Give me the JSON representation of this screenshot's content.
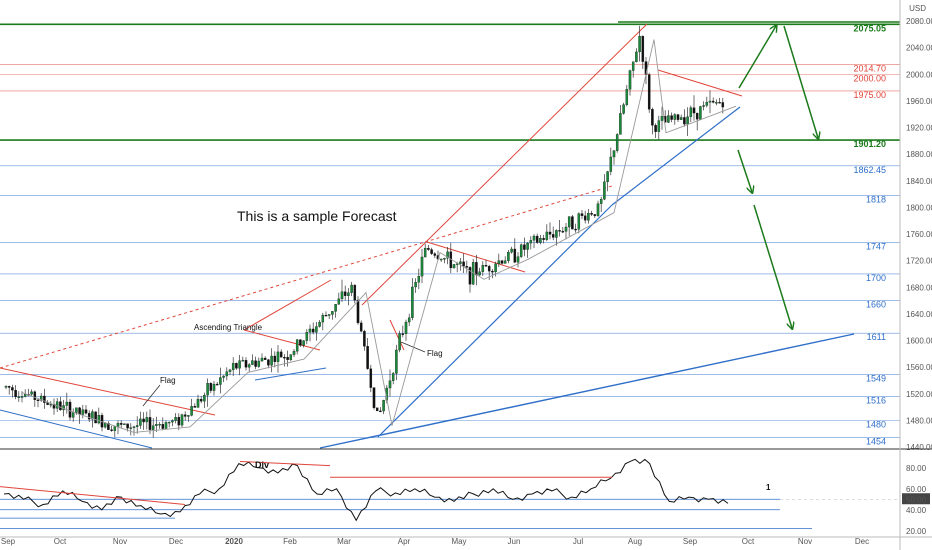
{
  "chart_data": [
    {
      "type": "candlestick",
      "title": "This is a sample Forecast",
      "currency_label": "USD",
      "ylim": [
        1440,
        2090
      ],
      "x_ticks": [
        "Sep",
        "Oct",
        "Nov",
        "Dec",
        "2020",
        "Feb",
        "Mar",
        "Apr",
        "May",
        "Jun",
        "Jul",
        "Aug",
        "Sep",
        "Oct",
        "Nov",
        "Dec"
      ],
      "y_ticks": [
        2080,
        2040,
        2000,
        1960,
        1920,
        1880,
        1840,
        1800,
        1760,
        1720,
        1680,
        1640,
        1600,
        1560,
        1520,
        1480,
        1440
      ],
      "levels": [
        {
          "value": 2075.05,
          "label": "2075.05",
          "color": "#1b7a1b",
          "weight": "bold"
        },
        {
          "value": 2014.7,
          "label": "2014.70",
          "color": "#e0453a",
          "weight": "normal"
        },
        {
          "value": 2000.0,
          "label": "2000.00",
          "color": "#e0453a",
          "weight": "normal"
        },
        {
          "value": 1975.0,
          "label": "1975.00",
          "color": "#e0453a",
          "weight": "normal"
        },
        {
          "value": 1901.2,
          "label": "1901.20",
          "color": "#1b7a1b",
          "weight": "bold"
        },
        {
          "value": 1862.45,
          "label": "1862.45",
          "color": "#2f6fc9",
          "weight": "normal"
        },
        {
          "value": 1818,
          "label": "1818",
          "color": "#2f6fc9",
          "weight": "normal"
        },
        {
          "value": 1747,
          "label": "1747",
          "color": "#2f6fc9",
          "weight": "normal"
        },
        {
          "value": 1700,
          "label": "1700",
          "color": "#2f6fc9",
          "weight": "normal"
        },
        {
          "value": 1660,
          "label": "1660",
          "color": "#2f6fc9",
          "weight": "normal"
        },
        {
          "value": 1611,
          "label": "1611",
          "color": "#2f6fc9",
          "weight": "normal"
        },
        {
          "value": 1549,
          "label": "1549",
          "color": "#2f6fc9",
          "weight": "normal"
        },
        {
          "value": 1516,
          "label": "1516",
          "color": "#2f6fc9",
          "weight": "normal"
        },
        {
          "value": 1480,
          "label": "1480",
          "color": "#2f6fc9",
          "weight": "normal"
        },
        {
          "value": 1454,
          "label": "1454",
          "color": "#2f6fc9",
          "weight": "normal"
        }
      ],
      "price_path": [
        [
          "Sep",
          1530
        ],
        [
          "Oct",
          1500
        ],
        [
          "Nov",
          1470
        ],
        [
          "Dec",
          1478
        ],
        [
          "2020",
          1560
        ],
        [
          "Feb",
          1580
        ],
        [
          "Mar",
          1680
        ],
        [
          "Mar",
          1480
        ],
        [
          "Apr",
          1600
        ],
        [
          "Apr",
          1740
        ],
        [
          "May",
          1700
        ],
        [
          "Jun",
          1730
        ],
        [
          "Jul",
          1800
        ],
        [
          "Aug",
          2060
        ],
        [
          "Aug",
          1920
        ],
        [
          "Sep",
          1960
        ]
      ],
      "annotations": [
        {
          "text": "Ascending Triangle",
          "x": "2020",
          "y": 1615
        },
        {
          "text": "Flag",
          "x": "Oct",
          "y": 1545
        },
        {
          "text": "Flag",
          "x": "Apr",
          "y": 1590
        }
      ],
      "forecast_paths": [
        {
          "name": "",
          "color": "#1b7a1b",
          "points": [
            [
              "Sep",
              1965
            ],
            [
              "Oct",
              2075
            ],
            [
              "Oct",
              1905
            ]
          ]
        },
        {
          "name": "",
          "color": "#1b7a1b",
          "points": [
            [
              "Sep",
              1880
            ],
            [
              "Oct",
              1820
            ],
            [
              "Oct",
              1611
            ]
          ]
        }
      ]
    },
    {
      "type": "line",
      "name": "oscillator",
      "ylim": [
        15,
        95
      ],
      "y_ticks": [
        80,
        60,
        50,
        40,
        20
      ],
      "current_label": "50.00",
      "annotations": [
        {
          "text": "Div"
        },
        {
          "text": "1"
        }
      ],
      "values": [
        55,
        50,
        45,
        58,
        48,
        40,
        52,
        44,
        36,
        38,
        55,
        60,
        84,
        80,
        75,
        82,
        55,
        60,
        30,
        58,
        56,
        60,
        52,
        48,
        55,
        60,
        50,
        55,
        58,
        52,
        60,
        70,
        86,
        84,
        48,
        52,
        50,
        46
      ]
    }
  ]
}
